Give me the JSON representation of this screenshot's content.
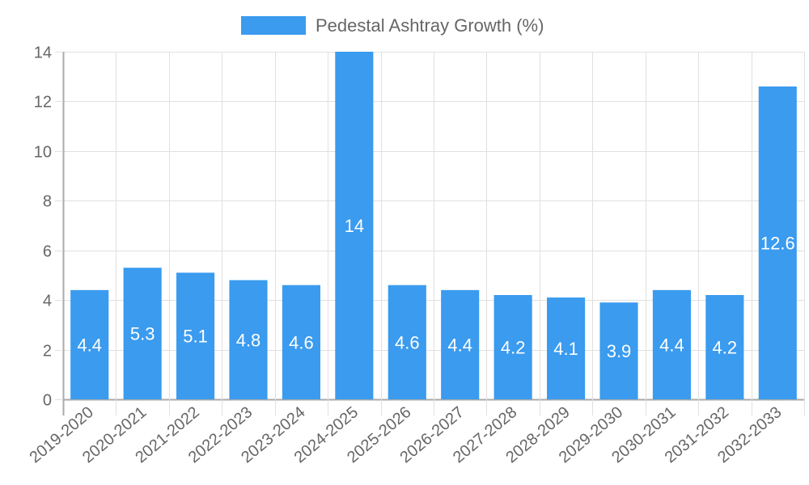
{
  "chart_data": {
    "type": "bar",
    "title": "",
    "xlabel": "",
    "ylabel": "",
    "categories": [
      "2019-2020",
      "2020-2021",
      "2021-2022",
      "2022-2023",
      "2023-2024",
      "2024-2025",
      "2025-2026",
      "2026-2027",
      "2027-2028",
      "2028-2029",
      "2029-2030",
      "2030-2031",
      "2031-2032",
      "2032-2033"
    ],
    "series": [
      {
        "name": "Pedestal Ashtray Growth (%)",
        "color": "#3a9bef",
        "values": [
          4.4,
          5.3,
          5.1,
          4.8,
          4.6,
          14,
          4.6,
          4.4,
          4.2,
          4.1,
          3.9,
          4.4,
          4.2,
          12.6
        ]
      }
    ],
    "ylim": [
      0,
      14
    ],
    "yticks": [
      0,
      2,
      4,
      6,
      8,
      10,
      12,
      14
    ],
    "grid": true,
    "legend_position": "top",
    "data_labels": true
  },
  "legend": {
    "label": "Pedestal Ashtray Growth (%)",
    "color": "#3a9bef"
  },
  "colors": {
    "bar": "#3a9bef",
    "grid": "#e0e0e0",
    "axis": "#aaaaaa",
    "text": "#666666"
  }
}
